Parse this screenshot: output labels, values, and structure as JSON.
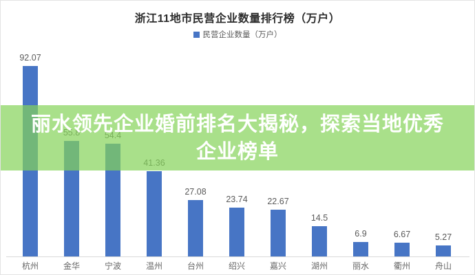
{
  "title": "浙江11地市民营企业数量排行榜（万户）",
  "legend": {
    "label": "民营企业数量（万户）",
    "marker_color": "#4775C5"
  },
  "banner": {
    "line1": "丽水领先企业婚前排名大揭秘，探索当地优秀",
    "line2": "企业榜单",
    "background_color": "rgba(132, 211, 89, 0.70)",
    "text_color": "#ffffff"
  },
  "chart_data": {
    "type": "bar",
    "title": "浙江11地市民营企业数量排行榜（万户）",
    "series_name": "民营企业数量（万户）",
    "categories": [
      "杭州",
      "金华",
      "宁波",
      "温州",
      "台州",
      "绍兴",
      "嘉兴",
      "湖州",
      "丽水",
      "衢州",
      "舟山"
    ],
    "values": [
      92.07,
      55.8,
      54.4,
      41.36,
      27.08,
      23.74,
      22.67,
      14.5,
      6.9,
      6.67,
      5.27
    ],
    "value_labels_shown": true,
    "bar_color": "#4775C5",
    "label_color": "#595959",
    "axis_line_color": "#d9d9d9",
    "xlabel": "",
    "ylabel": "",
    "ylim": [
      0,
      95
    ],
    "grid": false,
    "legend_position": "top",
    "y_axis_shown": false
  }
}
